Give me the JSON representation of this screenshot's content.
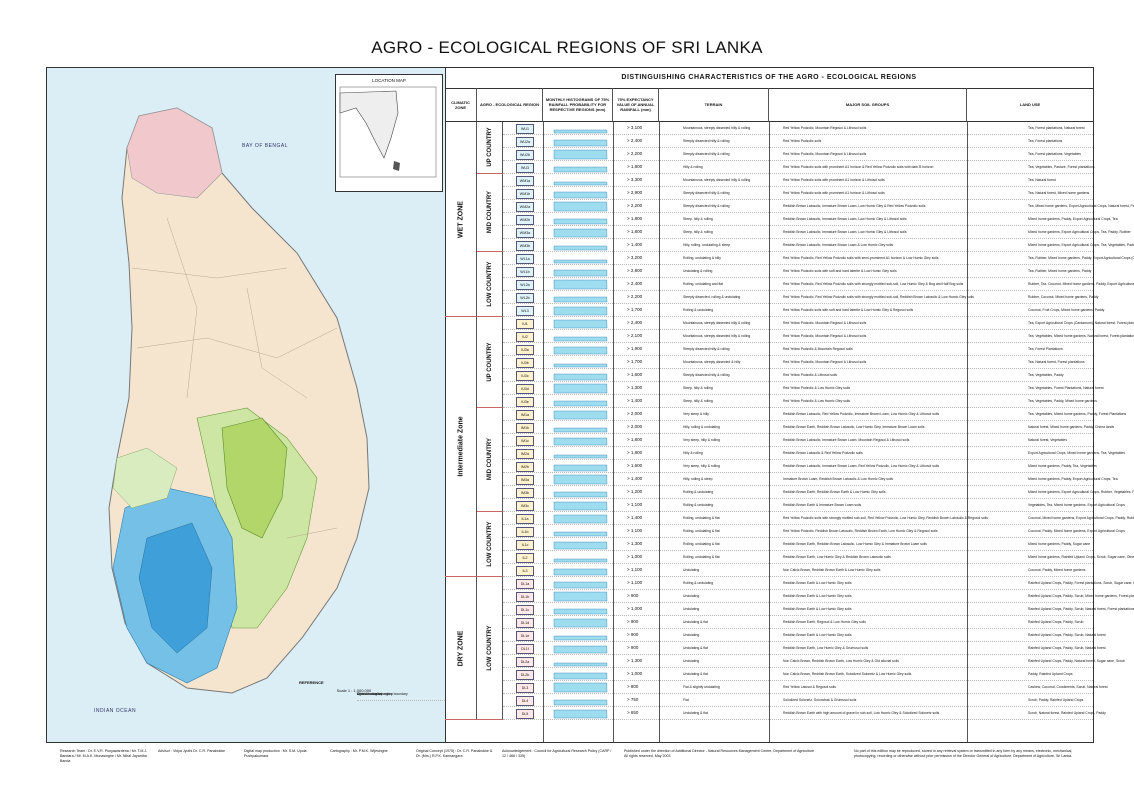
{
  "title": "AGRO - ECOLOGICAL REGIONS OF SRI LANKA",
  "map": {
    "inset_label": "LOCATION MAP",
    "bay_label": "BAY OF BENGAL",
    "ocean_label": "INDIAN OCEAN",
    "legend": {
      "title": "REFERENCE",
      "items": [
        "Climatic zone boundary",
        "Agro - ecological region boundary",
        "District boundary"
      ],
      "scale": "Scale 1 : 1,000,000"
    }
  },
  "table": {
    "title": "DISTINGUISHING  CHARACTERISTICS  OF  THE  AGRO - ECOLOGICAL  REGIONS",
    "headers": {
      "climatic_zone": "CLIMATIC ZONE",
      "region": "AGRO - ECOLOGICAL REGION",
      "histograms": "MONTHLY HISTOGRAMS OF 75% RAINFALL PROBABILITY FOR RESPECTIVE REGIONS (mm)",
      "rainfall": "75% EXPECTANCY VALUE OF ANNUAL RAINFALL (mm)",
      "terrain": "TERRAIN",
      "soils": "MAJOR SOIL GROUPS",
      "landuse": "LAND USE"
    },
    "zones": [
      {
        "name": "WET  ZONE",
        "subs": [
          {
            "name": "UP COUNTRY",
            "rows": [
              {
                "code": "WU1",
                "rain": "> 3,100",
                "terrain": "Mountainous, steeply dissected hilly & rolling",
                "soils": "Red Yellow Podzolic, Mountain Regosol & Lithosol soils",
                "use": "Tea, Forest plantations, Natural forest"
              },
              {
                "code": "WU2a",
                "rain": "> 2,400",
                "terrain": "Steeply dissected hilly & rolling",
                "soils": "Red Yellow Podzolic soils",
                "use": "Tea, Forest plantations"
              },
              {
                "code": "WU2b",
                "rain": "> 2,200",
                "terrain": "Steeply dissected hilly & rolling",
                "soils": "Red Yellow Podzolic, Mountain Regosol & Lithosol soils",
                "use": "Tea, Forest plantations, Vegetables"
              },
              {
                "code": "WU3",
                "rain": "> 1,800",
                "terrain": "Hilly & rolling",
                "soils": "Red Yellow Podzolic soils with prominent A1 horizon & Red Yellow Podzolic soils with dark B horizon",
                "use": "Tea, Vegetables, Pasture, Forest plantations"
              }
            ]
          },
          {
            "name": "MID COUNTRY",
            "rows": [
              {
                "code": "WM1a",
                "rain": "> 3,300",
                "terrain": "Mountainous, steeply dissected hilly & rolling",
                "soils": "Red Yellow Podzolic soils with prominent A1 horizon & Lithosol soils",
                "use": "Tea, Natural forest"
              },
              {
                "code": "WM1b",
                "rain": "> 2,900",
                "terrain": "Steeply dissected hilly & rolling",
                "soils": "Red Yellow Podzolic soils with prominent A1 horizon & Lithosol soils",
                "use": "Tea, Natural forest, Mixed home gardens"
              },
              {
                "code": "WM2a",
                "rain": "> 2,200",
                "terrain": "Steeply dissected hilly & rolling",
                "soils": "Reddish Brown Latosolic, Immature Brown Loam, Low Humic Gley & Red Yellow Podzolic soils",
                "use": "Tea, Mixed home gardens, Export Agricultural Crops, Natural forest, Paddy"
              },
              {
                "code": "WM2b",
                "rain": "> 1,800",
                "terrain": "Steep, hilly & rolling",
                "soils": "Reddish Brown Latosolic, Immature Brown Loam, Low Humic Gley & Lithosol soils",
                "use": "Mixed home gardens, Paddy, Export Agricultural Crops, Tea"
              },
              {
                "code": "WM3a",
                "rain": "> 1,800",
                "terrain": "Steep, hilly & rolling",
                "soils": "Reddish Brown Latosolic, Immature Brown Loam, Low Humic Gley & Lithosol soils",
                "use": "Mixed home gardens, Export Agricultural Crops, Tea, Paddy, Rubber"
              },
              {
                "code": "WM3b",
                "rain": "> 1,400",
                "terrain": "Hilly, rolling, undulating & steep",
                "soils": "Reddish Brown Latosolic, Immature Brown Loam & Low Humic Gley soils",
                "use": "Mixed home gardens, Export Agricultural Crops, Tea, Vegetables, Paddy"
              }
            ]
          },
          {
            "name": "LOW COUNTRY",
            "rows": [
              {
                "code": "WL1a",
                "rain": "> 3,200",
                "terrain": "Rolling, undulating & hilly",
                "soils": "Red Yellow Podzolic, Red Yellow Podzolic soils with semi-prominent A1 horizon & Low Humic Gley soils",
                "use": "Tea, Rubber, Mixed home gardens, Paddy, Export Agricultural Crops (Cinnamon)"
              },
              {
                "code": "WL1b",
                "rain": "> 2,800",
                "terrain": "Undulating & rolling",
                "soils": "Red Yellow Podzolic soils with soft and hard laterite & Low Humic Gley soils",
                "use": "Tea, Rubber, Mixed home gardens, Paddy"
              },
              {
                "code": "WL2a",
                "rain": "> 2,400",
                "terrain": "Rolling, undulating and flat",
                "soils": "Red Yellow Podzolic, Red Yellow Podzolic soils with strongly mottled sub-soil, Low Humic Gley & Bog and Half Bog soils",
                "use": "Rubber, Tea, Coconut, Mixed home gardens, Paddy, Export Agricultural Crops (Cinnamon)"
              },
              {
                "code": "WL2b",
                "rain": "> 2,200",
                "terrain": "Steeply dissected, rolling & undulating",
                "soils": "Red Yellow Podzolic, Red Yellow Podzolic soils with strongly mottled sub-soil, Reddish Brown Latosolic & Low Humic Gley soils",
                "use": "Rubber, Coconut, Mixed home gardens, Paddy"
              },
              {
                "code": "WL3",
                "rain": "> 1,700",
                "terrain": "Rolling & undulating",
                "soils": "Red Yellow Podzolic soils with soft and hard laterite & Low Humic Gley & Regosol soils",
                "use": "Coconut, Fruit Crops, Mixed home gardens, Paddy"
              }
            ]
          }
        ]
      },
      {
        "name": "Intermediate  Zone",
        "subs": [
          {
            "name": "UP COUNTRY",
            "rows": [
              {
                "code": "IU1",
                "rain": "> 2,400",
                "terrain": "Mountainous, steeply dissected hilly & rolling",
                "soils": "Red Yellow Podzolic, Mountain Regosol & Lithosol soils",
                "use": "Tea, Export Agricultural Crops (Cardamom), Natural forest, Forest plantations"
              },
              {
                "code": "IU2",
                "rain": "> 2,100",
                "terrain": "Mountainous, steeply dissected hilly & rolling",
                "soils": "Red Yellow Podzolic, Mountain Regosol & Lithosol soils",
                "use": "Tea, Vegetables, Mixed home gardens, Natural forest, Forest plantations"
              },
              {
                "code": "IU3a",
                "rain": "> 1,900",
                "terrain": "Steeply dissected hilly & rolling",
                "soils": "Red Yellow Podzolic & Mountain Regosol soils",
                "use": "Tea, Forest Plantations"
              },
              {
                "code": "IU3b",
                "rain": "> 1,700",
                "terrain": "Mountainous, steeply dissected & hilly",
                "soils": "Red Yellow Podzolic, Mountain Regosol & Lithosol soils",
                "use": "Tea, Natural forest, Forest plantations"
              },
              {
                "code": "IU3c",
                "rain": "> 1,600",
                "terrain": "Steeply dissected hilly & rolling",
                "soils": "Red Yellow Podzolic & Lithosol soils",
                "use": "Tea, Vegetables, Paddy"
              },
              {
                "code": "IU3d",
                "rain": "> 1,300",
                "terrain": "Steep, hilly & rolling",
                "soils": "Red Yellow Podzolic & Low Humic Gley soils",
                "use": "Tea, Vegetables, Forest Plantations, Natural forest"
              },
              {
                "code": "IU3e",
                "rain": "> 1,400",
                "terrain": "Steep, hilly & rolling",
                "soils": "Red Yellow Podzolic & Low Humic Gley soils",
                "use": "Tea, Vegetables, Paddy, Mixed home gardens"
              }
            ]
          },
          {
            "name": "MID COUNTRY",
            "rows": [
              {
                "code": "IM1a",
                "rain": "> 2,000",
                "terrain": "Very steep & hilly",
                "soils": "Reddish Brown Latosolic, Red Yellow Podzolic, Immature Brown Loam, Low Humic Gley & Lithosol soils",
                "use": "Tea, Vegetables, Mixed home gardens, Paddy, Forest Plantations"
              },
              {
                "code": "IM1b",
                "rain": "> 2,000",
                "terrain": "Hilly, rolling & undulating",
                "soils": "Reddish Brown Earth, Reddish Brown Latosolic, Low Humic Gley, Immature Brown Loam soils",
                "use": "Natural forest, Mixed home gardens, Paddy, Chena lands"
              },
              {
                "code": "IM1c",
                "rain": "> 1,800",
                "terrain": "Very steep, hilly & rolling",
                "soils": "Reddish Brown Latosolic, Immature Brown Loam, Mountain Regosol & Lithosol soils",
                "use": "Natural forest, Vegetables"
              },
              {
                "code": "IM2a",
                "rain": "> 1,800",
                "terrain": "Hilly & rolling",
                "soils": "Reddish Brown Latosolic & Red Yellow Podzolic soils",
                "use": "Export Agricultural Crops, Mixed home gardens, Tea, Vegetables"
              },
              {
                "code": "IM2b",
                "rain": "> 1,600",
                "terrain": "Very steep, hilly & rolling",
                "soils": "Reddish Brown Latosolic, Immature Brown Loam, Red Yellow Podzolic, Low Humic Gley & Lithosol soils",
                "use": "Mixed home gardens, Paddy, Tea, Vegetables"
              },
              {
                "code": "IM3a",
                "rain": "> 1,400",
                "terrain": "Hilly, rolling & steep",
                "soils": "Immature Brown Loam, Reddish Brown Latosolic & Low Humic Gley soils",
                "use": "Mixed home gardens, Paddy, Export Agricultural Crops, Tea"
              },
              {
                "code": "IM3b",
                "rain": "> 1,200",
                "terrain": "Rolling & undulating",
                "soils": "Reddish Brown Earth, Reddish Brown Earth & Low Humic Gley soils",
                "use": "Mixed home gardens, Export Agricultural Crops, Rubber, Vegetables, Paddy"
              },
              {
                "code": "IM3c",
                "rain": "> 1,100",
                "terrain": "Rolling & undulating",
                "soils": "Reddish Brown Earth & Immature Brown Loam soils",
                "use": "Vegetables, Tea, Mixed home gardens, Export Agricultural Crops"
              }
            ]
          },
          {
            "name": "LOW COUNTRY",
            "rows": [
              {
                "code": "IL1a",
                "rain": "> 1,400",
                "terrain": "Rolling, undulating & flat",
                "soils": "Red Yellow Podzolic soils with strongly mottled sub-soil, Red Yellow Podzolic, Low Humic Gley, Reddish Brown Latosolic & Regosol soils",
                "use": "Coconut, Mixed home gardens, Export Agricultural Crops, Paddy, Rubber"
              },
              {
                "code": "IL1b",
                "rain": "> 1,100",
                "terrain": "Rolling, undulating & flat",
                "soils": "Red Yellow Podzolic, Reddish Brown Latosolic, Reddish Brown Earth, Low Humic Gley & Regosol soils",
                "use": "Coconut, Paddy, Mixed home gardens, Export Agricultural Crops"
              },
              {
                "code": "IL1c",
                "rain": "> 1,300",
                "terrain": "Rolling, undulating & flat",
                "soils": "Reddish Brown Earth, Reddish Brown Latosolic, Low Humic Gley & Immature Brown Loam soils",
                "use": "Mixed home gardens, Paddy, Sugar cane"
              },
              {
                "code": "IL2",
                "rain": "> 1,000",
                "terrain": "Rolling, undulating & flat",
                "soils": "Reddish Brown Earth, Low Humic Gley & Reddish Brown Latosolic soils",
                "use": "Mixed home gardens, Rainfed Upland Crops, Scrub, Sugar cane, Other"
              },
              {
                "code": "IL3",
                "rain": "> 1,100",
                "terrain": "Undulating",
                "soils": "Non Calcic Brown, Reddish Brown Earth & Low Humic Gley soils",
                "use": "Coconut, Paddy, Mixed home gardens"
              }
            ]
          }
        ]
      },
      {
        "name": "DRY  ZONE",
        "subs": [
          {
            "name": "LOW COUNTRY",
            "rows": [
              {
                "code": "DL1a",
                "rain": "> 1,100",
                "terrain": "Rolling & undulating",
                "soils": "Reddish Brown Earth & Low Humic Gley soils",
                "use": "Rainfed Upland Crops, Paddy, Forest plantations, Scrub, Sugar cane, Natural forest"
              },
              {
                "code": "DL1b",
                "rain": "> 900",
                "terrain": "Undulating",
                "soils": "Reddish Brown Earth & Low Humic Gley soils",
                "use": "Rainfed Upland Crops, Paddy, Scrub, Mixed home gardens, Forest plantations"
              },
              {
                "code": "DL1c",
                "rain": "> 1,000",
                "terrain": "Undulating",
                "soils": "Reddish Brown Earth & Low Humic Gley soils",
                "use": "Rainfed Upland Crops, Paddy, Scrub, Natural forest, Forest plantations, Sugar cane"
              },
              {
                "code": "DL1d",
                "rain": "> 900",
                "terrain": "Undulating & flat",
                "soils": "Reddish Brown Earth, Regosol & Low Humic Gley soils",
                "use": "Rainfed Upland Crops, Paddy, Scrub"
              },
              {
                "code": "DL1e",
                "rain": "> 900",
                "terrain": "Undulating",
                "soils": "Reddish Brown Earth & Low Humic Gley soils",
                "use": "Rainfed Upland Crops, Paddy, Scrub, Natural forest"
              },
              {
                "code": "DL1f",
                "rain": "> 900",
                "terrain": "Undulating & flat",
                "soils": "Reddish Brown Earth, Low Humic Gley & Grumusol soils",
                "use": "Rainfed Upland Crops, Paddy, Scrub, Natural forest"
              },
              {
                "code": "DL2a",
                "rain": "> 1,300",
                "terrain": "Undulating",
                "soils": "Non Calcic Brown, Reddish Brown Earth, Low Humic Gley & Old alluvial soils",
                "use": "Rainfed Upland Crops, Paddy, Natural forest, Sugar cane, Scrub"
              },
              {
                "code": "DL2b",
                "rain": "> 1,000",
                "terrain": "Undulating & flat",
                "soils": "Non Calcic Brown, Reddish Brown Earth, Solodized Solonetz & Low Humic Gley soils",
                "use": "Paddy, Rainfed Upland Crops"
              },
              {
                "code": "DL3",
                "rain": "> 800",
                "terrain": "Flat & slightly undulating",
                "soils": "Red Yellow Latosol & Regosol soils",
                "use": "Cashew, Coconut, Condiments, Scrub, Natural forest"
              },
              {
                "code": "DL4",
                "rain": "> 750",
                "terrain": "Flat",
                "soils": "Solodized Solonetz, Solonchak & Grumusol soils",
                "use": "Scrub, Paddy, Rainfed Upland Crops"
              },
              {
                "code": "DL5",
                "rain": "> 650",
                "terrain": "Undulating & flat",
                "soils": "Reddish Brown Earth with high amount of gravel in sub-soil, Low Humic Gley & Solodized Solonetz soils",
                "use": "Scrub, Natural forest, Rainfed Upland Crops, Paddy"
              }
            ]
          }
        ]
      }
    ]
  },
  "footer": {
    "team": "Research Team : Dr. E.V.R. Punyawardena / Mr. T.M.J. Bandara / Mr. M.A.K. Munasinghe / Mr. Nihal Jayantha Banda",
    "advisor": "Advisor : Vidya Jyothi Dr. C.R. Panabokke",
    "digital": "Digital map production : Mr. S.M. Upula Pushpakumara",
    "carto": "Cartography : Mr. P.M.K. Wijesinghe",
    "concept": "Original Concept (1975) : Dr. C.R. Panabokke & Dr. (Mrs.) R.P.K. Kannangara",
    "ack": "Acknowledgement : Council for Agricultural Research Policy (CARP / 12 / 468 / 335)",
    "published": "Published under the direction of Additional Director - Natural Resources Management Centre, Department of Agriculture",
    "rights": "All rights reserved, May 2003",
    "copyright": "No part of this edition may be reproduced, stored in any retrieval system or transmitted in any form by any means, electronic, mechanical, photocopying, recording or otherwise without prior permission of the Director General of Agriculture, Department of Agriculture, Sri Lanka."
  }
}
